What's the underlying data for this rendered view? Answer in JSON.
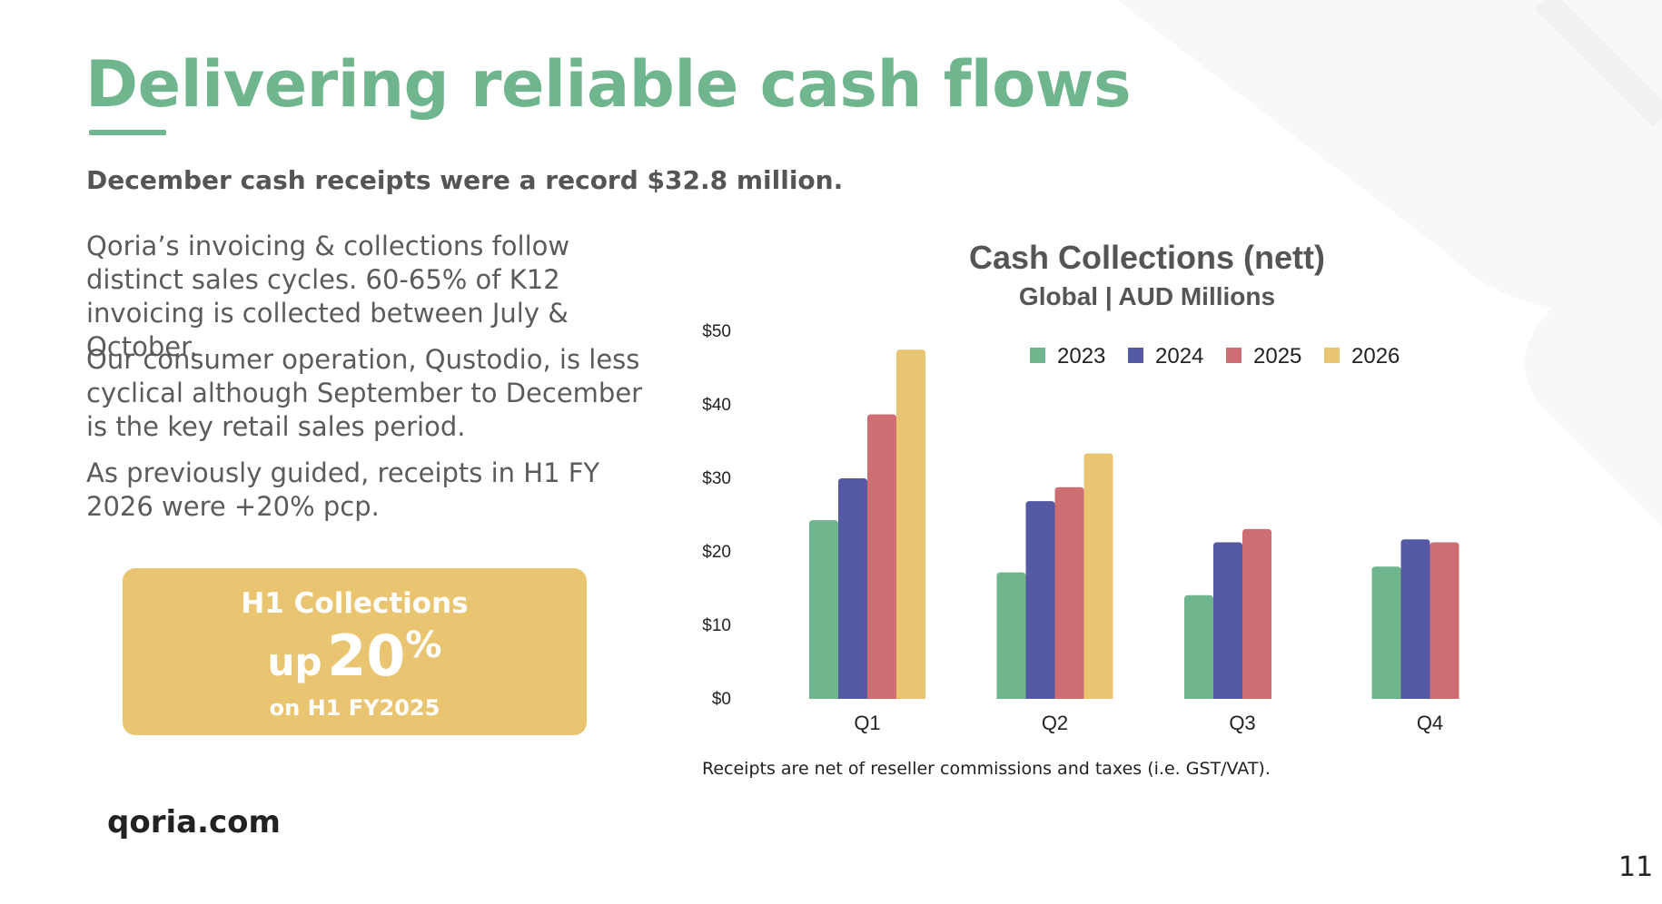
{
  "slide": {
    "title": "Delivering reliable cash flows",
    "subtitle": "December cash receipts were a record $32.8 million.",
    "paragraphs": [
      "Qoria’s invoicing & collections follow distinct sales cycles. 60-65% of K12 invoicing is collected between July & October.",
      "Our consumer operation, Qustodio, is less cyclical although September to December is the key retail sales period.",
      "As previously guided, receipts in H1 FY 2026 were +20% pcp."
    ],
    "callout": {
      "line1": "H1 Collections",
      "up": "up",
      "value": "20",
      "percent": "%",
      "line3": "on H1 FY2025"
    },
    "footnote": "Receipts are net of reseller commissions and taxes (i.e. GST/VAT).",
    "logo": "qoria.com",
    "page_number": "11"
  },
  "colors": {
    "accent": "#6fb58d",
    "callout": "#e9c572",
    "text": "#555555"
  },
  "chart_data": {
    "type": "bar",
    "title": "Cash Collections (nett)",
    "subtitle": "Global | AUD Millions",
    "categories": [
      "Q1",
      "Q2",
      "Q3",
      "Q4"
    ],
    "y_tick_labels": [
      "$0",
      "$10",
      "$20",
      "$30",
      "$40",
      "$50"
    ],
    "ylim": [
      0,
      50
    ],
    "grid": false,
    "legend_position": "top",
    "series": [
      {
        "name": "2023",
        "color": "#6fb58d",
        "values": [
          24.3,
          17.2,
          14.1,
          18.0
        ]
      },
      {
        "name": "2024",
        "color": "#5559a3",
        "values": [
          30.0,
          26.9,
          21.3,
          21.7
        ]
      },
      {
        "name": "2025",
        "color": "#cf6e72",
        "values": [
          38.7,
          28.8,
          23.1,
          21.3
        ]
      },
      {
        "name": "2026",
        "color": "#e9c572",
        "values": [
          47.5,
          33.4,
          null,
          null
        ]
      }
    ]
  }
}
